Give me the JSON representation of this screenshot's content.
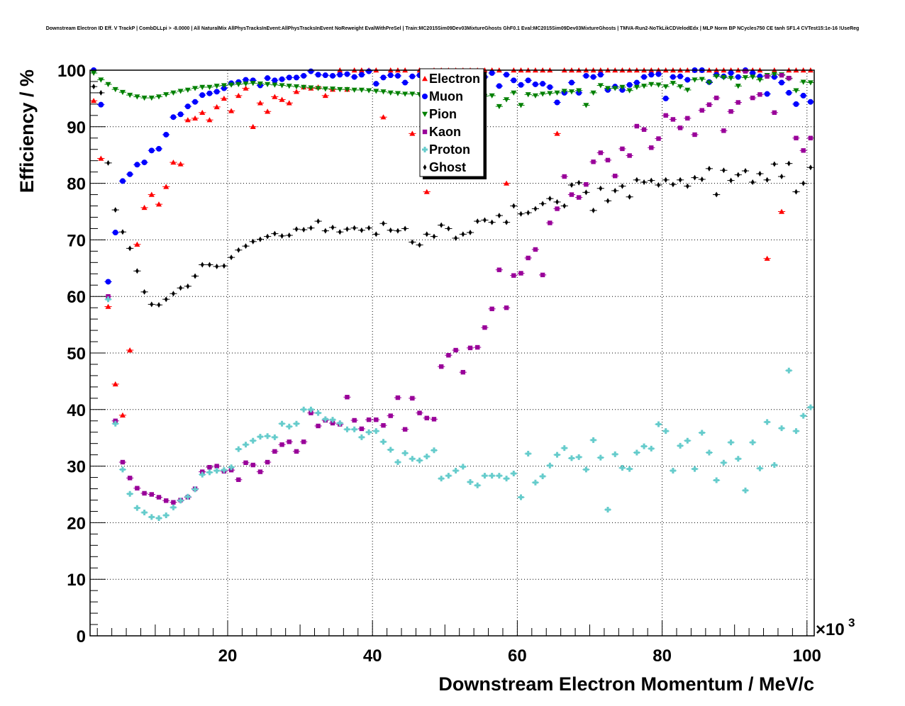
{
  "chart_data": {
    "type": "scatter",
    "title": "Downstream Electron ID Eff. V TrackP | CombDLLpi > -8.0000 | All NaturalMix AllPhysTracksInEvent:AllPhysTracksInEvent NoReweight EvalWithPreSel | Train:MC2015Sim09Dev03MixtureGhosts GhF0.1 Eval:MC2015Sim09Dev03MixtureGhosts | TMVA-Run2-NoTkLikCDVelodEdx | MLP Norm BP NCycles750 CE tanh SF1.4 CVTest15:1e-16 !UseReg",
    "xlabel": "Downstream Electron Momentum / MeV/c",
    "ylabel": "Efficiency / %",
    "x_multiplier": "×10",
    "x_multiplier_exp": "3",
    "xlim": [
      1,
      101
    ],
    "ylim": [
      0,
      100
    ],
    "xticks": [
      20,
      40,
      60,
      80,
      100
    ],
    "yticks": [
      0,
      10,
      20,
      30,
      40,
      50,
      60,
      70,
      80,
      90,
      100
    ],
    "grid": true,
    "legend_position": "top-center",
    "x": [
      1.5,
      2.5,
      3.5,
      4.5,
      5.5,
      6.5,
      7.5,
      8.5,
      9.5,
      10.5,
      11.5,
      12.5,
      13.5,
      14.5,
      15.5,
      16.5,
      17.5,
      18.5,
      19.5,
      20.5,
      21.5,
      22.5,
      23.5,
      24.5,
      25.5,
      26.5,
      27.5,
      28.5,
      29.5,
      30.5,
      31.5,
      32.5,
      33.5,
      34.5,
      35.5,
      36.5,
      37.5,
      38.5,
      39.5,
      40.5,
      41.5,
      42.5,
      43.5,
      44.5,
      45.5,
      46.5,
      47.5,
      48.5,
      49.5,
      50.5,
      51.5,
      52.5,
      53.5,
      54.5,
      55.5,
      56.5,
      57.5,
      58.5,
      59.5,
      60.5,
      61.5,
      62.5,
      63.5,
      64.5,
      65.5,
      66.5,
      67.5,
      68.5,
      69.5,
      70.5,
      71.5,
      72.5,
      73.5,
      74.5,
      75.5,
      76.5,
      77.5,
      78.5,
      79.5,
      80.5,
      81.5,
      82.5,
      83.5,
      84.5,
      85.5,
      86.5,
      87.5,
      88.5,
      89.5,
      90.5,
      91.5,
      92.5,
      93.5,
      94.5,
      95.5,
      96.5,
      97.5,
      98.5,
      99.5,
      100.5
    ],
    "series": [
      {
        "name": "Electron",
        "color": "#ff0000",
        "marker": "triangle",
        "values": [
          94.6,
          84.4,
          58.2,
          44.5,
          39.0,
          50.5,
          69.2,
          75.7,
          78.0,
          76.3,
          79.4,
          83.7,
          83.4,
          91.2,
          91.5,
          92.5,
          91.2,
          93.5,
          95.0,
          92.8,
          95.5,
          96.8,
          90.0,
          94.2,
          92.7,
          95.3,
          94.8,
          94.2,
          96.2,
          97.0,
          96.8,
          97.0,
          95.5,
          96.6,
          100,
          96.6,
          100,
          100,
          100,
          100,
          91.7,
          100,
          100,
          100,
          88.8,
          100,
          78.5,
          100,
          100,
          100,
          100,
          100,
          100,
          100,
          100,
          100,
          100,
          80.0,
          100,
          100,
          100,
          100,
          100,
          100,
          88.8,
          100,
          100,
          100,
          100,
          100,
          100,
          100,
          100,
          100,
          100,
          100,
          100,
          100,
          100,
          100,
          100,
          100,
          100,
          100,
          100,
          100,
          100,
          100,
          100,
          100,
          100,
          100,
          100,
          66.7,
          100,
          75.0,
          100,
          100,
          100,
          100
        ]
      },
      {
        "name": "Muon",
        "color": "#0000ff",
        "marker": "circle",
        "values": [
          100,
          93.9,
          62.6,
          71.3,
          80.4,
          81.6,
          83.3,
          83.7,
          85.8,
          86.1,
          88.6,
          91.7,
          92.2,
          93.6,
          94.4,
          95.6,
          95.9,
          96.2,
          96.8,
          97.7,
          97.9,
          98.3,
          98.2,
          97.3,
          98.6,
          98.2,
          98.4,
          98.7,
          98.7,
          99.0,
          99.8,
          99.2,
          99.1,
          99.0,
          99.2,
          99.3,
          98.8,
          99.2,
          99.8,
          97.6,
          98.7,
          99.1,
          99.0,
          97.8,
          98.9,
          99.1,
          99.5,
          99.1,
          99.3,
          99.5,
          99.0,
          99.8,
          99.3,
          97.8,
          98.8,
          99.5,
          97.2,
          99.2,
          98.2,
          97.4,
          98.2,
          97.5,
          97.6,
          97.0,
          94.3,
          96.0,
          97.8,
          96.0,
          99.0,
          98.8,
          99.2,
          96.5,
          97.1,
          96.5,
          97.4,
          97.8,
          98.8,
          99.2,
          99.3,
          95.0,
          98.8,
          98.9,
          98.3,
          100,
          100,
          97.9,
          99.2,
          98.9,
          99.5,
          98.8,
          100,
          99.5,
          98.9,
          95.8,
          98.8,
          97.8,
          96.0,
          94.0,
          95.5,
          94.4
        ]
      },
      {
        "name": "Pion",
        "color": "#008000",
        "marker": "triangle-down",
        "values": [
          99.5,
          98.3,
          97.5,
          96.6,
          96.1,
          95.6,
          95.3,
          95.1,
          95.1,
          95.3,
          95.7,
          96.0,
          96.3,
          96.5,
          96.8,
          97.0,
          97.0,
          97.2,
          97.3,
          97.4,
          97.5,
          97.6,
          97.7,
          97.6,
          97.5,
          97.4,
          97.3,
          97.2,
          97.1,
          97.0,
          96.9,
          96.8,
          96.7,
          96.7,
          96.6,
          96.6,
          96.5,
          96.5,
          96.4,
          96.3,
          96.2,
          96.0,
          95.9,
          95.8,
          95.8,
          95.7,
          95.6,
          95.7,
          95.5,
          95.4,
          95.7,
          95.5,
          95.5,
          95.5,
          95.4,
          95.5,
          93.6,
          94.8,
          96.0,
          93.8,
          95.7,
          95.5,
          95.8,
          95.9,
          96.0,
          96.3,
          96.2,
          96.4,
          93.8,
          96.0,
          97.3,
          96.8,
          96.8,
          97.0,
          96.4,
          97.0,
          97.2,
          97.5,
          97.4,
          97.1,
          97.7,
          97.1,
          96.5,
          98.3,
          98.4,
          97.8,
          98.9,
          98.7,
          98.6,
          97.2,
          98.7,
          98.8,
          98.3,
          99.1,
          99.3,
          99.2,
          98.5,
          96.4,
          97.9,
          97.8
        ]
      },
      {
        "name": "Kaon",
        "color": "#990099",
        "marker": "square",
        "values": [
          null,
          null,
          60.0,
          38.0,
          30.7,
          27.9,
          26.1,
          25.2,
          25.0,
          24.5,
          23.9,
          23.6,
          24.0,
          24.5,
          26.0,
          29.0,
          29.8,
          30.0,
          29.1,
          29.3,
          27.6,
          30.6,
          30.2,
          29.0,
          30.7,
          32.6,
          33.8,
          34.3,
          32.6,
          34.3,
          39.4,
          37.1,
          38.1,
          37.6,
          37.4,
          42.2,
          38.1,
          36.6,
          38.2,
          38.2,
          37.2,
          38.9,
          42.1,
          36.5,
          42.0,
          39.4,
          38.5,
          38.3,
          47.6,
          49.6,
          50.5,
          46.6,
          50.9,
          51.0,
          54.5,
          57.8,
          64.7,
          58.0,
          63.7,
          64.1,
          66.8,
          68.3,
          63.8,
          73.0,
          75.5,
          81.2,
          78.0,
          77.5,
          79.8,
          83.8,
          85.4,
          84.1,
          81.3,
          86.1,
          84.9,
          90.1,
          89.5,
          86.3,
          87.9,
          92.0,
          91.3,
          89.8,
          91.5,
          88.6,
          92.9,
          93.9,
          95.1,
          89.3,
          92.7,
          94.3,
          99.8,
          95.1,
          95.7,
          98.9,
          92.5,
          99.1,
          98.6,
          88.0,
          85.8,
          88.0
        ]
      },
      {
        "name": "Proton",
        "color": "#66cccc",
        "marker": "cross",
        "values": [
          null,
          null,
          59.5,
          37.5,
          29.4,
          25.1,
          22.6,
          21.8,
          21.0,
          20.8,
          21.3,
          22.7,
          23.9,
          24.6,
          25.9,
          28.5,
          28.9,
          29.2,
          29.3,
          29.8,
          33.0,
          33.8,
          34.5,
          35.2,
          35.3,
          35.1,
          37.5,
          37.0,
          37.5,
          40.0,
          40.0,
          39.4,
          38.3,
          38.2,
          37.6,
          36.5,
          36.5,
          35.1,
          36.0,
          36.2,
          34.3,
          32.9,
          30.7,
          32.3,
          31.3,
          31.0,
          31.7,
          32.8,
          27.8,
          28.3,
          29.2,
          29.9,
          27.2,
          26.6,
          28.3,
          28.3,
          28.3,
          27.8,
          28.7,
          24.5,
          32.2,
          27.1,
          28.2,
          30.1,
          32.0,
          33.2,
          31.4,
          31.6,
          29.4,
          34.6,
          31.5,
          22.3,
          32.1,
          29.7,
          29.5,
          32.4,
          33.5,
          33.1,
          37.4,
          36.2,
          29.2,
          33.6,
          34.5,
          29.5,
          35.9,
          32.4,
          27.5,
          30.6,
          34.2,
          31.3,
          25.7,
          34.2,
          29.6,
          37.8,
          30.2,
          36.7,
          46.9,
          36.2,
          38.9,
          40.4
        ]
      },
      {
        "name": "Ghost",
        "color": "#000000",
        "marker": "diamond",
        "values": [
          97.1,
          96.0,
          83.6,
          75.3,
          71.4,
          68.5,
          64.5,
          60.8,
          58.6,
          58.5,
          59.5,
          60.5,
          61.5,
          61.8,
          63.6,
          65.6,
          65.6,
          65.3,
          65.4,
          66.9,
          68.2,
          68.9,
          69.7,
          70.1,
          70.6,
          71.1,
          70.7,
          70.8,
          71.9,
          71.8,
          72.1,
          73.3,
          71.6,
          72.2,
          71.4,
          71.9,
          72.1,
          71.7,
          72.1,
          71.0,
          72.9,
          71.7,
          71.6,
          72.0,
          69.6,
          69.1,
          71.0,
          70.6,
          72.6,
          72.0,
          70.3,
          71.0,
          71.3,
          73.3,
          73.5,
          73.1,
          74.3,
          73.1,
          76.0,
          74.6,
          74.8,
          75.5,
          76.4,
          77.3,
          76.7,
          76.0,
          79.7,
          80.1,
          78.4,
          75.2,
          79.1,
          76.9,
          78.7,
          79.5,
          77.6,
          80.6,
          80.2,
          80.5,
          79.7,
          80.6,
          79.8,
          80.6,
          79.5,
          81.0,
          80.7,
          82.6,
          78.0,
          82.3,
          80.5,
          81.5,
          82.2,
          80.2,
          81.7,
          80.6,
          83.4,
          81.2,
          83.5,
          78.5,
          80.0,
          82.8
        ],
        "note": ""
      }
    ]
  },
  "legend": {
    "items": [
      {
        "label": "Electron",
        "color": "#ff0000",
        "marker": "triangle"
      },
      {
        "label": "Muon",
        "color": "#0000ff",
        "marker": "circle"
      },
      {
        "label": "Pion",
        "color": "#008000",
        "marker": "triangle-down"
      },
      {
        "label": "Kaon",
        "color": "#990099",
        "marker": "square"
      },
      {
        "label": "Proton",
        "color": "#66cccc",
        "marker": "cross"
      },
      {
        "label": "Ghost",
        "color": "#000000",
        "marker": "diamond"
      }
    ]
  }
}
